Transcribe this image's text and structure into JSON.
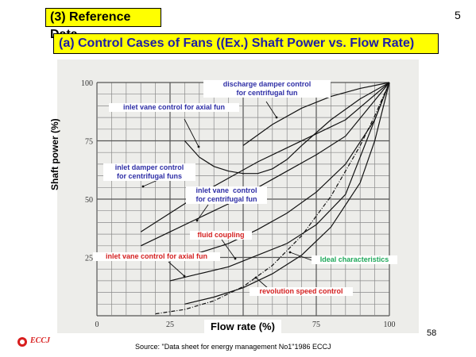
{
  "header": {
    "section_title": "(3) Reference Data",
    "subtitle": "(a) Control Cases of Fans ((Ex.) Shaft Power vs. Flow Rate)",
    "page_number": "5"
  },
  "footer": {
    "slide_number": "58",
    "logo_text": "ECCJ",
    "source": "Source: \"Data sheet for energy management No1\"1986 ECCJ"
  },
  "colors": {
    "title_bg": "#ffff00",
    "subtitle_text": "#1c1ca8",
    "plot_bg": "#ededea",
    "annotation_blue": "#2f2fa6",
    "annotation_red": "#d42020",
    "annotation_green": "#1ea85a"
  },
  "chart_data": {
    "type": "line",
    "xlabel": "Flow rate  (%)",
    "ylabel": "Shaft power  (%)",
    "xlim": [
      0,
      100
    ],
    "ylim": [
      0,
      100
    ],
    "x_ticks": [
      0,
      25,
      50,
      75,
      100
    ],
    "y_ticks": [
      25,
      50,
      75,
      100
    ],
    "grid": true,
    "annotations": [
      {
        "text": "discharge damper control\nfor centrifugal fun",
        "color": "#2f2fa6"
      },
      {
        "text": "inlet vane  control for axial fun",
        "color": "#2f2fa6"
      },
      {
        "text": "inlet damper control\nfor centrifugal funs",
        "color": "#2f2fa6"
      },
      {
        "text": "inlet vane  control\nfor centrifugal fun",
        "color": "#2f2fa6"
      },
      {
        "text": "fluid coupling",
        "color": "#d42020"
      },
      {
        "text": "inlet  vane  control for axial fun",
        "color": "#d42020"
      },
      {
        "text": "Ideal characteristics",
        "color": "#1ea85a"
      },
      {
        "text": "revolution speed  control",
        "color": "#d42020"
      }
    ],
    "series": [
      {
        "x": [
          50,
          60,
          70,
          80,
          90,
          100
        ],
        "y": [
          73,
          82,
          89,
          94,
          97.5,
          100
        ]
      },
      {
        "x": [
          30,
          35,
          40,
          45,
          50,
          55,
          60,
          65,
          70,
          80,
          90,
          100
        ],
        "y": [
          75,
          68,
          64,
          62,
          61,
          61,
          63,
          67,
          73,
          84,
          93,
          100
        ]
      },
      {
        "x": [
          15,
          25,
          35,
          45,
          55,
          65,
          75,
          85,
          100
        ],
        "y": [
          36,
          44,
          52,
          59,
          66,
          72,
          78,
          84,
          100
        ]
      },
      {
        "x": [
          15,
          25,
          35,
          45,
          55,
          65,
          75,
          85,
          100
        ],
        "y": [
          30,
          36,
          42,
          48,
          55,
          62,
          69,
          77,
          100
        ]
      },
      {
        "x": [
          25,
          35,
          45,
          55,
          65,
          75,
          85,
          95,
          100
        ],
        "y": [
          24,
          27,
          31,
          37,
          44,
          53,
          65,
          84,
          100
        ]
      },
      {
        "x": [
          25,
          35,
          45,
          55,
          65,
          75,
          85,
          100
        ],
        "y": [
          15,
          18,
          21,
          26,
          31,
          39,
          52,
          100
        ]
      },
      {
        "x": [
          30,
          40,
          50,
          60,
          70,
          80,
          90,
          95,
          100
        ],
        "y": [
          5,
          8,
          12,
          18,
          26,
          38,
          57,
          75,
          100
        ]
      },
      {
        "x": [
          20,
          30,
          40,
          50,
          60,
          70,
          80,
          90,
          95,
          100
        ],
        "y": [
          0.8,
          2.7,
          6.4,
          12.5,
          21.6,
          34.3,
          51.2,
          72.9,
          85.7,
          100
        ],
        "dashed": true
      }
    ]
  }
}
